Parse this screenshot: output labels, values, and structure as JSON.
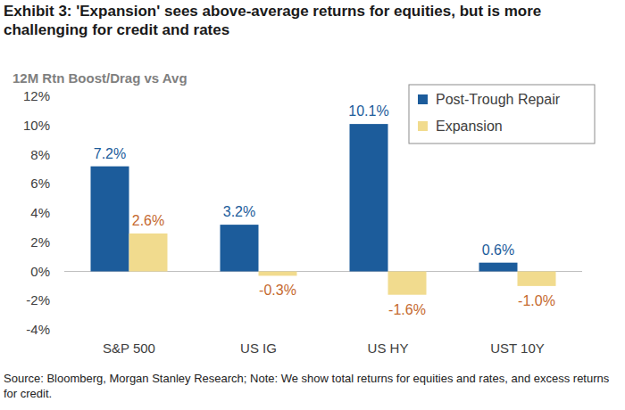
{
  "chart_data": {
    "type": "bar",
    "title": "Exhibit 3:  'Expansion' sees above-average returns for equities, but is more challenging for credit and rates",
    "ylabel": "12M Rtn Boost/Drag vs Avg",
    "note": "Source: Bloomberg, Morgan Stanley Research; Note: We show total returns for equities and rates, and excess returns for credit.",
    "categories": [
      "S&P 500",
      "US IG",
      "US HY",
      "UST 10Y"
    ],
    "series": [
      {
        "name": "Post-Trough Repair",
        "color": "#1c5c9b",
        "values": [
          7.2,
          3.2,
          10.1,
          0.6
        ],
        "value_labels": [
          "7.2%",
          "3.2%",
          "10.1%",
          "0.6%"
        ]
      },
      {
        "name": "Expansion",
        "color": "#f1db8e",
        "values": [
          2.6,
          -0.3,
          -1.6,
          -1.0
        ],
        "value_labels": [
          "2.6%",
          "-0.3%",
          "-1.6%",
          "-1.0%"
        ]
      }
    ],
    "ylim": [
      -4,
      12
    ],
    "yticks": [
      {
        "value": -4,
        "label": "-4%"
      },
      {
        "value": -2,
        "label": "-2%"
      },
      {
        "value": 0,
        "label": "0%"
      },
      {
        "value": 2,
        "label": "2%"
      },
      {
        "value": 4,
        "label": "4%"
      },
      {
        "value": 6,
        "label": "6%"
      },
      {
        "value": 8,
        "label": "8%"
      },
      {
        "value": 10,
        "label": "10%"
      },
      {
        "value": 12,
        "label": "12%"
      }
    ],
    "grid": false,
    "legend": "top-right",
    "data_labels": true
  }
}
